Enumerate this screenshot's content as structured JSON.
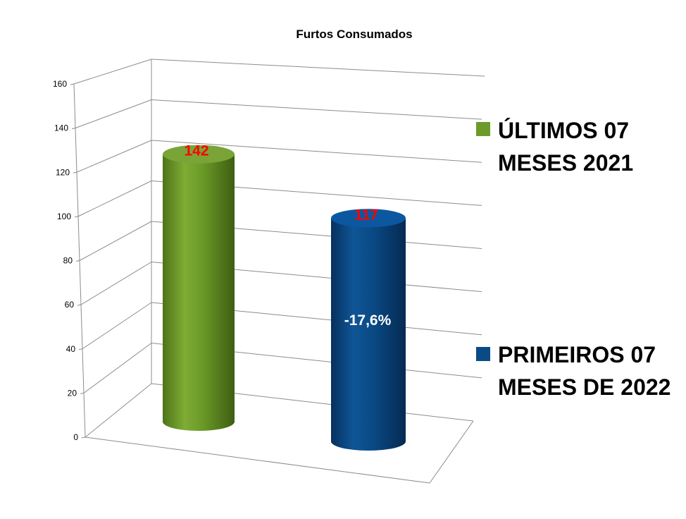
{
  "chart_data": {
    "type": "bar",
    "style": "3d-cylinder",
    "title": "Furtos Consumados",
    "categories": [
      "ÚLTIMOS 07 MESES 2021",
      "PRIMEIROS 07 MESES DE 2022"
    ],
    "series": [
      {
        "name": "ÚLTIMOS 07 MESES 2021",
        "name_lines": [
          "ÚLTIMOS 07",
          "MESES 2021"
        ],
        "value": 142,
        "label": "142",
        "color": "#6e9a2b"
      },
      {
        "name": "PRIMEIROS 07 MESES DE 2022",
        "name_lines": [
          "PRIMEIROS 07",
          "MESES DE 2022"
        ],
        "value": 117,
        "label": "117",
        "color": "#0a4a86"
      }
    ],
    "ylim": [
      0,
      160
    ],
    "yticks": [
      "0",
      "20",
      "40",
      "60",
      "80",
      "100",
      "120",
      "140",
      "160"
    ],
    "annotation": "-17,6%",
    "data_label_color": "#ff0000",
    "grid": true,
    "legend_position": "right"
  }
}
